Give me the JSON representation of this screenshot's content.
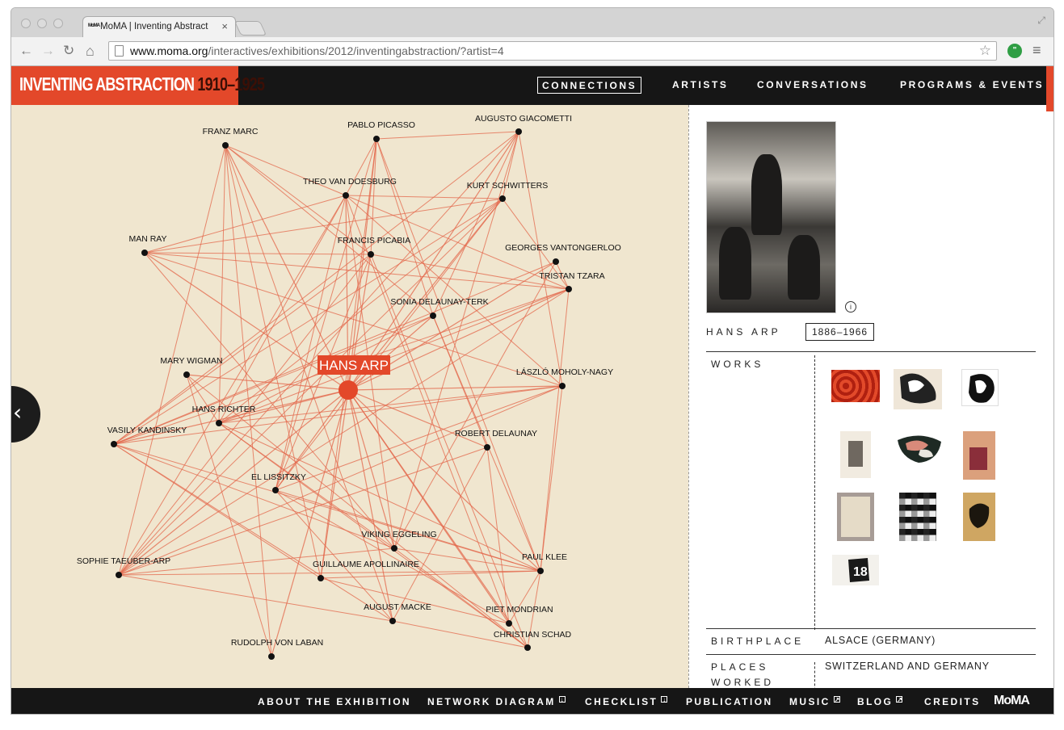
{
  "browser": {
    "tab_title": "MoMA | Inventing Abstract",
    "tab_favicon": "MoMA",
    "url_domain": "www.moma.org",
    "url_path": "/interactives/exhibitions/2012/inventingabstraction/?artist=4",
    "close_glyph": "×",
    "back_glyph": "←",
    "forward_glyph": "→",
    "reload_glyph": "↻",
    "home_glyph": "⌂",
    "star_glyph": "☆",
    "menu_glyph": "≡",
    "resize_glyph": "⤢"
  },
  "site": {
    "logo_main": "INVENTING ABSTRACTION",
    "logo_years": "1910–1925",
    "nav": [
      "CONNECTIONS",
      "ARTISTS",
      "CONVERSATIONS",
      "PROGRAMS & EVENTS"
    ],
    "back_glyph": "‹"
  },
  "network": {
    "selected": "HANS ARP",
    "node_color": "#111111",
    "selected_color": "#e3482a",
    "line_color": "#e3664a",
    "artists": [
      "FRANZ MARC",
      "PABLO PICASSO",
      "AUGUSTO GIACOMETTI",
      "THEO VAN DOESBURG",
      "KURT SCHWITTERS",
      "MAN RAY",
      "FRANCIS PICABIA",
      "GEORGES VANTONGERLOO",
      "TRISTAN TZARA",
      "SONIA DELAUNAY-TERK",
      "MARY WIGMAN",
      "LÁSZLÓ MOHOLY-NAGY",
      "HANS RICHTER",
      "VASILY KANDINSKY",
      "ROBERT DELAUNAY",
      "EL LISSITZKY",
      "VIKING EGGELING",
      "SOPHIE TAEUBER-ARP",
      "GUILLAUME APOLLINAIRE",
      "PAUL KLEE",
      "AUGUST MACKE",
      "PIET MONDRIAN",
      "CHRISTIAN SCHAD",
      "RUDOLPH VON LABAN"
    ]
  },
  "artist": {
    "name": "HANS ARP",
    "dates": "1886–1966",
    "info_glyph": "i",
    "works_label": "WORKS",
    "birthplace_label": "BIRTHPLACE",
    "birthplace": "ALSACE (GERMANY)",
    "places_label_1": "PLACES",
    "places_label_2": "WORKED",
    "places": "SWITZERLAND AND GERMANY"
  },
  "footer": {
    "links": [
      "ABOUT THE EXHIBITION",
      "NETWORK DIAGRAM",
      "CHECKLIST",
      "PUBLICATION",
      "MUSIC",
      "BLOG",
      "CREDITS"
    ],
    "logo": "MoMA"
  }
}
